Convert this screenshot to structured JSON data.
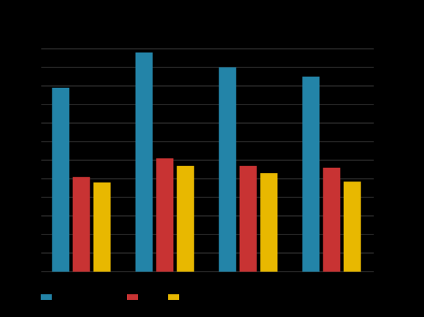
{
  "chart_data": {
    "type": "bar",
    "categories": [
      "",
      "",
      "",
      ""
    ],
    "series": [
      {
        "name": "",
        "color": "#2384A8",
        "values": [
          99,
          118,
          110,
          105
        ]
      },
      {
        "name": "",
        "color": "#C83333",
        "values": [
          51,
          61,
          57,
          56
        ]
      },
      {
        "name": "",
        "color": "#E8B800",
        "values": [
          48,
          57,
          53,
          48.5
        ]
      }
    ],
    "title": "",
    "xlabel": "",
    "ylabel": "",
    "ylim": [
      0,
      120
    ],
    "yticks": [
      0,
      10,
      20,
      30,
      40,
      50,
      60,
      70,
      80,
      90,
      100,
      110,
      120
    ],
    "grid": true,
    "legend": "bottom-left"
  }
}
